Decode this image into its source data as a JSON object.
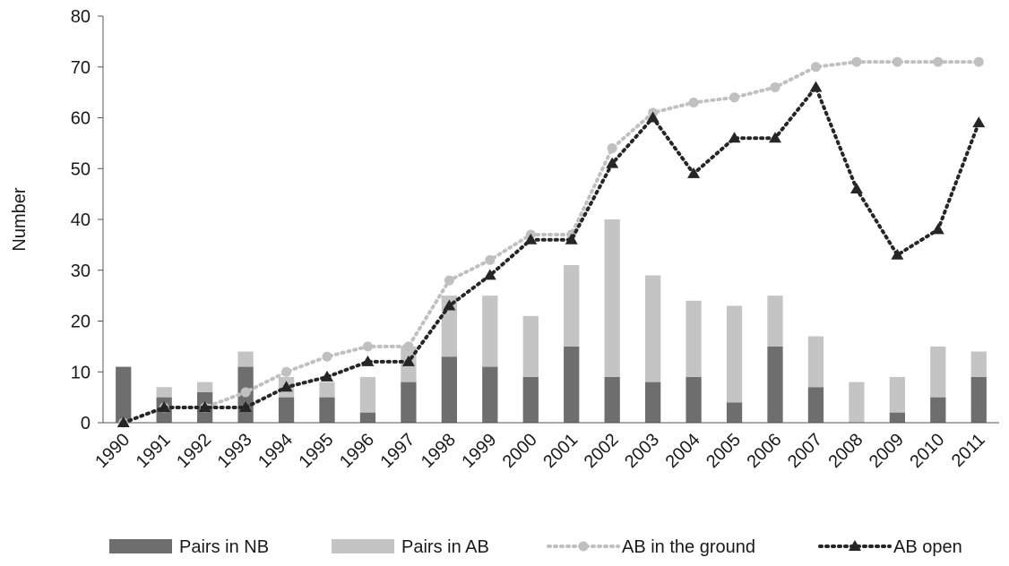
{
  "chart_data": {
    "type": "bar",
    "stacked": true,
    "y_label": "Number",
    "categories": [
      "1990",
      "1991",
      "1992",
      "1993",
      "1994",
      "1995",
      "1996",
      "1997",
      "1998",
      "1999",
      "2000",
      "2001",
      "2002",
      "2003",
      "2004",
      "2005",
      "2006",
      "2007",
      "2008",
      "2009",
      "2010",
      "2011"
    ],
    "series": [
      {
        "name": "Pairs in NB",
        "type": "bar",
        "color": "#6e6e6e",
        "values": [
          11,
          5,
          6,
          11,
          5,
          5,
          2,
          8,
          13,
          11,
          9,
          15,
          9,
          8,
          9,
          4,
          15,
          7,
          0,
          2,
          5,
          9
        ]
      },
      {
        "name": "Pairs in AB",
        "type": "bar",
        "color": "#c4c4c4",
        "values": [
          0,
          2,
          2,
          3,
          4,
          3,
          7,
          7,
          12,
          14,
          12,
          16,
          31,
          21,
          15,
          19,
          10,
          10,
          8,
          7,
          10,
          5
        ]
      },
      {
        "name": "AB in the ground",
        "type": "line",
        "marker": "circle",
        "color": "#c0c0c0",
        "values": [
          0,
          3,
          3,
          6,
          10,
          13,
          15,
          15,
          28,
          32,
          37,
          37,
          54,
          61,
          63,
          64,
          66,
          70,
          71,
          71,
          71,
          71
        ]
      },
      {
        "name": "AB open",
        "type": "line",
        "marker": "triangle",
        "color": "#262626",
        "values": [
          0,
          3,
          3,
          3,
          7,
          9,
          12,
          12,
          23,
          29,
          36,
          36,
          51,
          60,
          49,
          56,
          56,
          66,
          46,
          33,
          38,
          59
        ]
      }
    ],
    "ylim": [
      0,
      80
    ],
    "yticks": [
      0,
      10,
      20,
      30,
      40,
      50,
      60,
      70,
      80
    ],
    "grid": false,
    "legend": "bottom"
  }
}
